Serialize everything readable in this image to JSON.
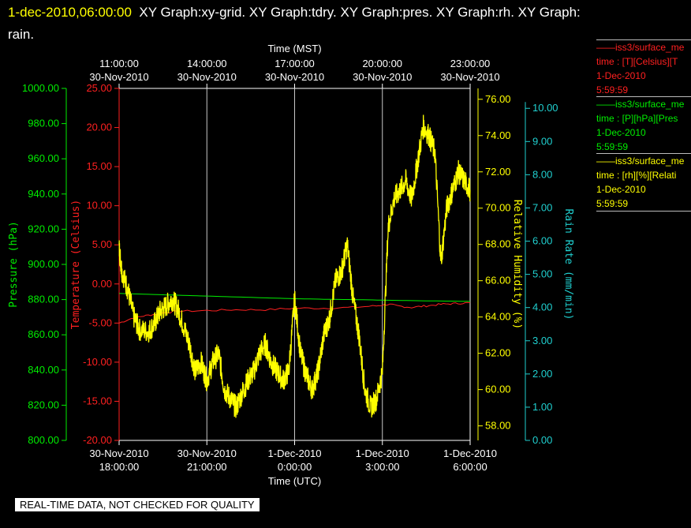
{
  "header": {
    "timestamp": "1-dec-2010,06:00:00",
    "graphs": "XY Graph:xy-grid.  XY Graph:tdry.  XY Graph:pres.  XY Graph:rh.  XY Graph:",
    "graphs_tail": "rain."
  },
  "note": "REAL-TIME DATA, NOT CHECKED FOR QUALITY",
  "legend": [
    {
      "name": "——iss3/surface_me",
      "units": "time : [T][Celsius][T",
      "date": "1-Dec-2010",
      "time": "5:59:59",
      "color": "#ff2020"
    },
    {
      "name": "——iss3/surface_me",
      "units": "time : [P][hPa][Pres",
      "date": "1-Dec-2010",
      "time": "5:59:59",
      "color": "#00ee00"
    },
    {
      "name": "——iss3/surface_me",
      "units": "time : [rh][%][Relati",
      "date": "1-Dec-2010",
      "time": "5:59:59",
      "color": "#ffff00"
    }
  ],
  "chart_data": {
    "type": "line",
    "top_axis": {
      "label": "Time (MST)",
      "ticks": [
        {
          "hour": 11,
          "t1": "11:00:00",
          "t2": "30-Nov-2010"
        },
        {
          "hour": 14,
          "t1": "14:00:00",
          "t2": "30-Nov-2010"
        },
        {
          "hour": 17,
          "t1": "17:00:00",
          "t2": "30-Nov-2010"
        },
        {
          "hour": 20,
          "t1": "20:00:00",
          "t2": "30-Nov-2010"
        },
        {
          "hour": 23,
          "t1": "23:00:00",
          "t2": "30-Nov-2010"
        }
      ]
    },
    "bottom_axis": {
      "label": "Time (UTC)",
      "ticks": [
        {
          "hour": 18,
          "t1": "30-Nov-2010",
          "t2": "18:00:00"
        },
        {
          "hour": 21,
          "t1": "30-Nov-2010",
          "t2": "21:00:00"
        },
        {
          "hour": 24,
          "t1": "1-Dec-2010",
          "t2": "0:00:00"
        },
        {
          "hour": 27,
          "t1": "1-Dec-2010",
          "t2": "3:00:00"
        },
        {
          "hour": 30,
          "t1": "1-Dec-2010",
          "t2": "6:00:00"
        }
      ]
    },
    "x_range_utc_hours": [
      18,
      30
    ],
    "grid": "vertical",
    "axes": {
      "temperature": {
        "label": "Temperature (Celsius)",
        "color": "#ff2020",
        "range": [
          -20,
          25
        ],
        "ticks": [
          "-20.00",
          "-15.00",
          "-10.00",
          "-5.00",
          "0.00",
          "5.00",
          "10.00",
          "15.00",
          "20.00",
          "25.00"
        ]
      },
      "pressure": {
        "label": "Pressure (hPa)",
        "color": "#00ee00",
        "range": [
          800,
          1000
        ],
        "ticks": [
          "800.00",
          "820.00",
          "840.00",
          "860.00",
          "880.00",
          "900.00",
          "920.00",
          "940.00",
          "960.00",
          "980.00",
          "1000.00"
        ]
      },
      "rh": {
        "label": "Relative Humidity (%)",
        "color": "#ffff00",
        "range": [
          57.2,
          76.6
        ],
        "ticks": [
          "58.00",
          "60.00",
          "62.00",
          "64.00",
          "66.00",
          "68.00",
          "70.00",
          "72.00",
          "74.00",
          "76.00"
        ]
      },
      "rain": {
        "label": "Rain Rate (mm/min)",
        "color": "#20d0d0",
        "range": [
          0,
          10.6
        ],
        "ticks": [
          "0.00",
          "1.00",
          "2.00",
          "3.00",
          "4.00",
          "5.00",
          "6.00",
          "7.00",
          "8.00",
          "9.00",
          "10.00"
        ]
      }
    },
    "series": [
      {
        "name": "iss3/surface_me [T]",
        "axis": "temperature",
        "color": "#ff2020",
        "x": [
          18.0,
          18.5,
          19.0,
          19.5,
          20.0,
          21.0,
          22.0,
          23.0,
          24.0,
          25.0,
          26.0,
          26.8,
          27.2,
          27.5,
          28.0,
          28.5,
          29.0,
          29.5,
          30.0
        ],
        "y": [
          -5.0,
          -4.3,
          -4.0,
          -3.7,
          -3.5,
          -3.4,
          -3.3,
          -3.3,
          -3.1,
          -3.1,
          -3.0,
          -2.8,
          -2.6,
          -2.8,
          -3.0,
          -2.8,
          -2.6,
          -2.5,
          -2.4
        ]
      },
      {
        "name": "iss3/surface_me [P]",
        "axis": "pressure",
        "color": "#00ee00",
        "x": [
          18.0,
          19.0,
          20.0,
          21.0,
          22.0,
          23.0,
          24.0,
          25.0,
          26.0,
          27.0,
          28.0,
          29.0,
          30.0
        ],
        "y": [
          883.5,
          883.0,
          882.5,
          882.0,
          881.5,
          881.0,
          880.5,
          880.2,
          880.0,
          879.7,
          879.4,
          879.2,
          879.0
        ]
      },
      {
        "name": "iss3/surface_me [rh]",
        "axis": "rh",
        "color": "#ffff00",
        "x": [
          18.0,
          18.1,
          18.3,
          18.5,
          18.7,
          19.0,
          19.2,
          19.4,
          19.6,
          19.8,
          20.0,
          20.2,
          20.4,
          20.6,
          20.8,
          21.0,
          21.2,
          21.4,
          21.6,
          21.8,
          22.0,
          22.2,
          22.4,
          22.6,
          22.8,
          23.0,
          23.2,
          23.4,
          23.6,
          23.8,
          24.0,
          24.2,
          24.4,
          24.6,
          24.8,
          25.0,
          25.2,
          25.4,
          25.6,
          25.8,
          26.0,
          26.2,
          26.4,
          26.6,
          26.8,
          27.0,
          27.2,
          27.4,
          27.6,
          27.8,
          28.0,
          28.2,
          28.4,
          28.6,
          28.8,
          29.0,
          29.2,
          29.4,
          29.6,
          29.8,
          30.0
        ],
        "y": [
          67.8,
          66.5,
          65.5,
          64.0,
          63.3,
          63.2,
          63.6,
          64.3,
          64.6,
          65.0,
          64.5,
          63.5,
          62.5,
          61.0,
          61.5,
          60.5,
          61.5,
          62.0,
          60.0,
          59.5,
          59.0,
          59.8,
          60.5,
          61.0,
          62.0,
          62.5,
          61.5,
          61.0,
          60.5,
          61.0,
          65.0,
          62.0,
          60.8,
          60.0,
          61.0,
          63.0,
          64.0,
          66.0,
          66.5,
          68.0,
          65.0,
          63.0,
          60.0,
          59.0,
          59.5,
          61.0,
          69.0,
          70.5,
          71.0,
          71.5,
          70.5,
          72.5,
          74.5,
          74.0,
          73.0,
          67.0,
          70.0,
          71.0,
          72.0,
          71.5,
          71.0
        ]
      }
    ]
  }
}
